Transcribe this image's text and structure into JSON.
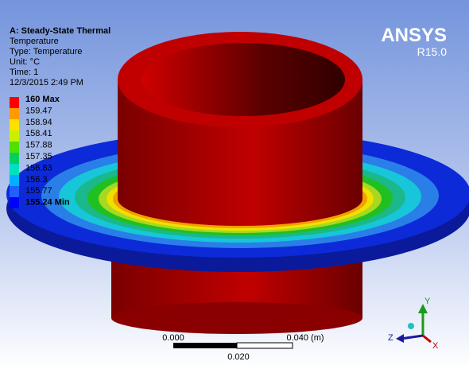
{
  "header": {
    "title": "A: Steady-State Thermal",
    "lines": [
      "Temperature",
      "Type: Temperature",
      "Unit: °C",
      "Time: 1",
      "12/3/2015 2:49 PM"
    ]
  },
  "legend": {
    "labels": [
      "160 Max",
      "159.47",
      "158.94",
      "158.41",
      "157.88",
      "157.35",
      "156.83",
      "156.3",
      "155.77",
      "155.24 Min"
    ]
  },
  "logo": {
    "name": "ANSYS",
    "release": "R15.0"
  },
  "scale_bar": {
    "left": "0.000",
    "right": "0.040 (m)",
    "middle": "0.020"
  },
  "triad": {
    "y": "Y",
    "z": "Z",
    "x": "X"
  }
}
